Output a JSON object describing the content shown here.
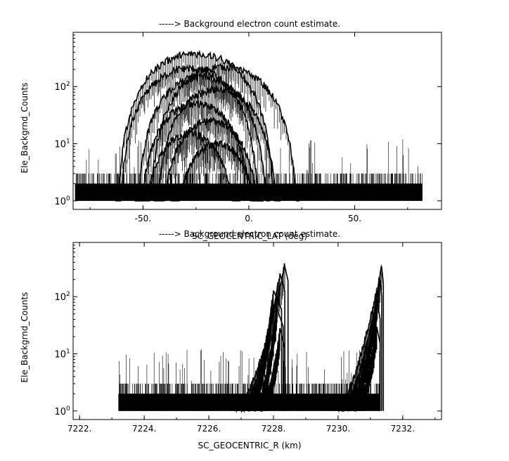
{
  "chart_data": [
    {
      "type": "line",
      "title": "-----> Background electron count estimate.",
      "xlabel": "SC_GEOCENTRIC_LAT (deg)",
      "ylabel": "Ele_Backgrnd_Counts",
      "xlim": [
        -83,
        91
      ],
      "ylim_log10": [
        -0.15,
        2.95
      ],
      "yscale": "log",
      "grid": false,
      "legend": "none",
      "x_ticks": [
        {
          "value": -50,
          "label": "-50."
        },
        {
          "value": 0,
          "label": "0."
        },
        {
          "value": 50,
          "label": "50."
        }
      ],
      "y_ticks": [
        {
          "value": 1,
          "mantissa": "10",
          "exp": "0"
        },
        {
          "value": 10,
          "mantissa": "10",
          "exp": "1"
        },
        {
          "value": 100,
          "mantissa": "10",
          "exp": "2"
        }
      ],
      "noise": {
        "x_range": [
          -82,
          82
        ],
        "levels": [
          1,
          2,
          3
        ],
        "spike_max": 12
      },
      "arches": [
        {
          "center": -25,
          "peak": 380,
          "half_width": 38
        },
        {
          "center": -12,
          "peak": 220,
          "half_width": 36
        },
        {
          "center": -28,
          "peak": 210,
          "half_width": 34
        },
        {
          "center": -22,
          "peak": 150,
          "half_width": 32
        },
        {
          "center": -15,
          "peak": 90,
          "half_width": 30
        },
        {
          "center": -25,
          "peak": 50,
          "half_width": 28
        },
        {
          "center": -18,
          "peak": 25,
          "half_width": 25
        },
        {
          "center": -28,
          "peak": 15,
          "half_width": 24
        },
        {
          "center": -15,
          "peak": 10,
          "half_width": 22
        }
      ]
    },
    {
      "type": "line",
      "title": "-----> Background electron count estimate.",
      "xlabel": "SC_GEOCENTRIC_R (km)",
      "ylabel": "Ele_Backgrnd_Counts",
      "xlim": [
        7221.8,
        7233.2
      ],
      "ylim_log10": [
        -0.15,
        2.95
      ],
      "yscale": "log",
      "grid": false,
      "legend": "none",
      "x_ticks": [
        {
          "value": 7222,
          "label": "7222."
        },
        {
          "value": 7224,
          "label": "7224."
        },
        {
          "value": 7226,
          "label": "7226."
        },
        {
          "value": 7228,
          "label": "7228."
        },
        {
          "value": 7230,
          "label": "7230."
        },
        {
          "value": 7232,
          "label": "7232."
        }
      ],
      "y_ticks": [
        {
          "value": 1,
          "mantissa": "10",
          "exp": "0"
        },
        {
          "value": 10,
          "mantissa": "10",
          "exp": "1"
        },
        {
          "value": 100,
          "mantissa": "10",
          "exp": "2"
        }
      ],
      "noise": {
        "x_range": [
          7223.2,
          7231.3
        ],
        "levels": [
          1,
          2,
          3
        ],
        "spike_max": 12
      },
      "ramps": [
        {
          "x_start": 7226.8,
          "x_peak": 7228.35,
          "x_end": 7228.45,
          "peak": 380
        },
        {
          "x_start": 7227.0,
          "x_peak": 7228.2,
          "x_end": 7228.35,
          "peak": 250
        },
        {
          "x_start": 7227.2,
          "x_peak": 7228.0,
          "x_end": 7228.25,
          "peak": 120
        },
        {
          "x_start": 7227.4,
          "x_peak": 7228.1,
          "x_end": 7228.3,
          "peak": 60
        },
        {
          "x_start": 7227.6,
          "x_peak": 7228.2,
          "x_end": 7228.35,
          "peak": 25
        },
        {
          "x_start": 7229.9,
          "x_peak": 7231.35,
          "x_end": 7231.4,
          "peak": 340
        },
        {
          "x_start": 7230.1,
          "x_peak": 7231.3,
          "x_end": 7231.35,
          "peak": 200
        },
        {
          "x_start": 7230.3,
          "x_peak": 7231.2,
          "x_end": 7231.3,
          "peak": 80
        },
        {
          "x_start": 7230.5,
          "x_peak": 7231.2,
          "x_end": 7231.3,
          "peak": 30
        }
      ]
    }
  ]
}
